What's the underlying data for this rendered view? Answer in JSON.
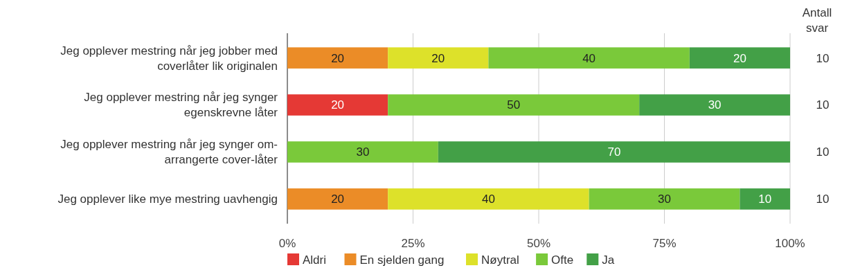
{
  "chart_data": {
    "type": "bar",
    "orientation": "horizontal",
    "stacked": true,
    "data_labels": true,
    "grid": "x",
    "legend": "bottom",
    "categories": [
      "Jeg opplever mestring når jeg jobber med coverlåter lik originalen",
      "Jeg opplever mestring når jeg synger egenskrevne låter",
      "Jeg opplever mestring når jeg synger om-arrangerte cover-låter",
      "Jeg opplever like mye mestring uavhengig"
    ],
    "series": [
      {
        "name": "Aldri",
        "color": "#e53935",
        "values": [
          null,
          20,
          null,
          null
        ]
      },
      {
        "name": "En sjelden gang",
        "color": "#eb8c27",
        "values": [
          20,
          null,
          null,
          20
        ]
      },
      {
        "name": "Nøytral",
        "color": "#dde12a",
        "values": [
          20,
          null,
          null,
          40
        ]
      },
      {
        "name": "Ofte",
        "color": "#7ac93a",
        "values": [
          40,
          50,
          30,
          30
        ]
      },
      {
        "name": "Ja",
        "color": "#43a047",
        "values": [
          20,
          30,
          70,
          10
        ]
      }
    ],
    "xlim": [
      0,
      100
    ],
    "xticks": [
      {
        "value": 0,
        "label": "0%"
      },
      {
        "value": 25,
        "label": "25%"
      },
      {
        "value": 50,
        "label": "50%"
      },
      {
        "value": 75,
        "label": "75%"
      },
      {
        "value": 100,
        "label": "100%"
      }
    ],
    "annotations": [
      "Antall svar",
      "10",
      "10",
      "10",
      "10"
    ]
  }
}
